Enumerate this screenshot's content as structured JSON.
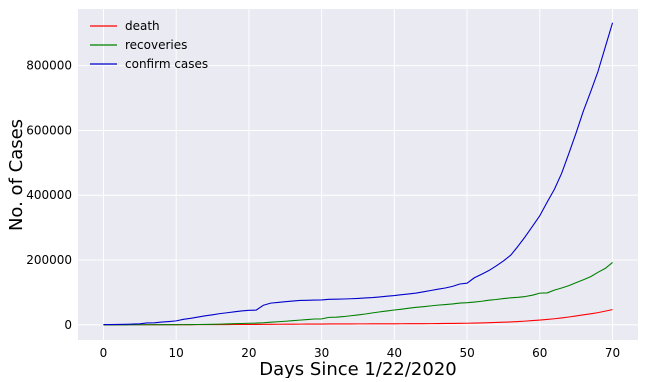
{
  "chart_data": {
    "type": "line",
    "title": "",
    "xlabel": "Days Since 1/22/2020",
    "ylabel": "No. of Cases",
    "xlim": [
      -3.5,
      73.5
    ],
    "ylim": [
      -47000,
      975000
    ],
    "xticks": [
      0,
      10,
      20,
      30,
      40,
      50,
      60,
      70
    ],
    "yticks": [
      0,
      200000,
      400000,
      600000,
      800000
    ],
    "grid": true,
    "legend_position": "top-left",
    "x": [
      0,
      1,
      2,
      3,
      4,
      5,
      6,
      7,
      8,
      9,
      10,
      11,
      12,
      13,
      14,
      15,
      16,
      17,
      18,
      19,
      20,
      21,
      22,
      23,
      24,
      25,
      26,
      27,
      28,
      29,
      30,
      31,
      32,
      33,
      34,
      35,
      36,
      37,
      38,
      39,
      40,
      41,
      42,
      43,
      44,
      45,
      46,
      47,
      48,
      49,
      50,
      51,
      52,
      53,
      54,
      55,
      56,
      57,
      58,
      59,
      60,
      61,
      62,
      63,
      64,
      65,
      66,
      67,
      68,
      69,
      70
    ],
    "series": [
      {
        "name": "death",
        "color": "#ff0000",
        "values": [
          17,
          18,
          26,
          42,
          56,
          82,
          131,
          133,
          171,
          213,
          259,
          362,
          426,
          492,
          564,
          634,
          719,
          806,
          906,
          1013,
          1113,
          1118,
          1371,
          1523,
          1666,
          1770,
          1868,
          2007,
          2122,
          2247,
          2251,
          2458,
          2469,
          2629,
          2708,
          2770,
          2814,
          2872,
          2941,
          2996,
          3085,
          3160,
          3254,
          3348,
          3460,
          3558,
          3803,
          3996,
          4262,
          4615,
          4720,
          5404,
          5819,
          6440,
          7126,
          7905,
          8733,
          9867,
          11299,
          12973,
          14623,
          16497,
          18615,
          21181,
          23970,
          27198,
          30652,
          33925,
          37582,
          42107,
          46809
        ]
      },
      {
        "name": "recoveries",
        "color": "#008000",
        "values": [
          28,
          30,
          36,
          39,
          52,
          61,
          107,
          126,
          143,
          222,
          284,
          472,
          623,
          852,
          1124,
          1487,
          2011,
          2616,
          3244,
          3946,
          4683,
          5150,
          6295,
          8058,
          9395,
          10865,
          12583,
          14352,
          16121,
          17813,
          18177,
          22886,
          23394,
          25227,
          27905,
          30384,
          33277,
          36711,
          39782,
          42716,
          45602,
          48229,
          51171,
          53797,
          55866,
          58359,
          60694,
          62494,
          64404,
          67003,
          68324,
          70251,
          72624,
          76034,
          78088,
          80840,
          83207,
          84854,
          87256,
          91449,
          97705,
          98336,
          107018,
          113609,
          120874,
          130012,
          138948,
          148615,
          162001,
          174080,
          192436
        ]
      },
      {
        "name": "confirm cases",
        "color": "#0000cc",
        "values": [
          555,
          654,
          941,
          1434,
          2118,
          2927,
          5578,
          6166,
          8234,
          9927,
          12038,
          16787,
          19881,
          23892,
          27635,
          30794,
          34391,
          37120,
          40150,
          42762,
          44802,
          45221,
          60368,
          66885,
          69030,
          71224,
          73258,
          75136,
          75639,
          76197,
          76819,
          78572,
          78958,
          79561,
          80406,
          81388,
          82746,
          84112,
          86011,
          88369,
          90306,
          92840,
          95120,
          97886,
          101800,
          105847,
          109821,
          113590,
          118620,
          125875,
          128352,
          145205,
          156101,
          167454,
          181574,
          197102,
          214821,
          242570,
          272208,
          304507,
          336953,
          378235,
          418045,
          467653,
          529591,
          593291,
          660693,
          720140,
          782389,
          857487,
          932605
        ]
      }
    ]
  }
}
